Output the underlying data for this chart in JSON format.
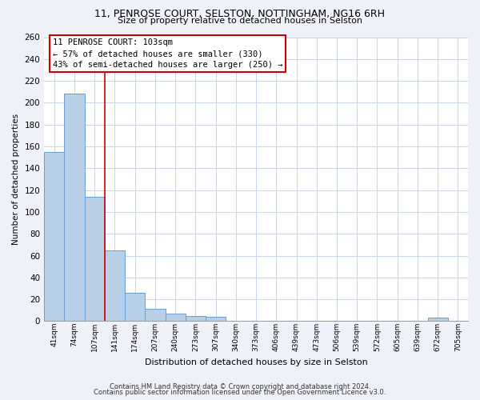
{
  "title1": "11, PENROSE COURT, SELSTON, NOTTINGHAM, NG16 6RH",
  "title2": "Size of property relative to detached houses in Selston",
  "xlabel": "Distribution of detached houses by size in Selston",
  "ylabel": "Number of detached properties",
  "bar_labels": [
    "41sqm",
    "74sqm",
    "107sqm",
    "141sqm",
    "174sqm",
    "207sqm",
    "240sqm",
    "273sqm",
    "307sqm",
    "340sqm",
    "373sqm",
    "406sqm",
    "439sqm",
    "473sqm",
    "506sqm",
    "539sqm",
    "572sqm",
    "605sqm",
    "639sqm",
    "672sqm",
    "705sqm"
  ],
  "bar_values": [
    155,
    208,
    114,
    65,
    26,
    11,
    7,
    5,
    4,
    0,
    0,
    0,
    0,
    0,
    0,
    0,
    0,
    0,
    0,
    3,
    0
  ],
  "bar_color": "#b8cfe8",
  "bar_edge_color": "#6a9dc8",
  "vline_x_index": 2,
  "vline_color": "#cc0000",
  "ylim": [
    0,
    260
  ],
  "yticks": [
    0,
    20,
    40,
    60,
    80,
    100,
    120,
    140,
    160,
    180,
    200,
    220,
    240,
    260
  ],
  "annotation_line1": "11 PENROSE COURT: 103sqm",
  "annotation_line2": "← 57% of detached houses are smaller (330)",
  "annotation_line3": "43% of semi-detached houses are larger (250) →",
  "footer1": "Contains HM Land Registry data © Crown copyright and database right 2024.",
  "footer2": "Contains public sector information licensed under the Open Government Licence v3.0.",
  "background_color": "#eef2f8",
  "plot_bg_color": "#ffffff",
  "grid_color": "#c8d4e8"
}
